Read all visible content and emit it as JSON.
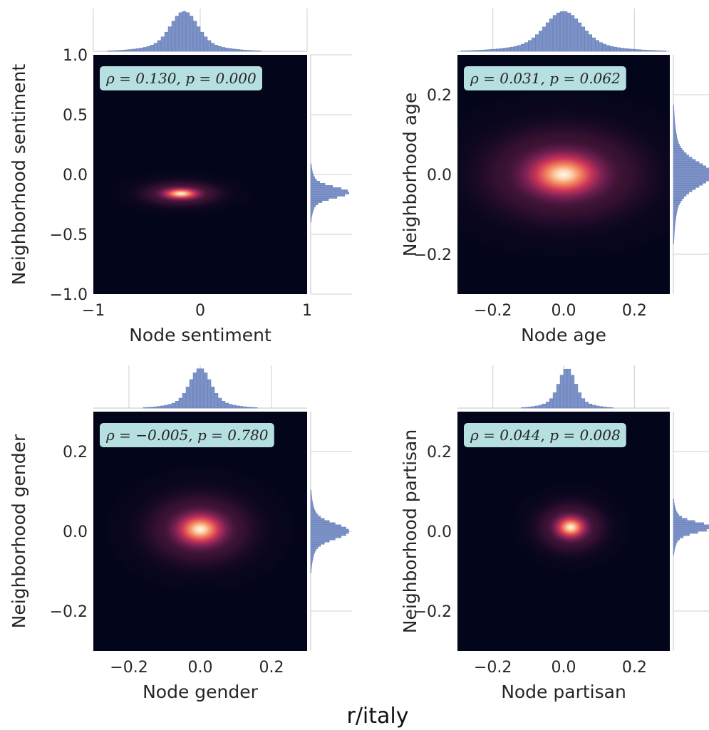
{
  "suptitle": "r/italy",
  "chart_data": [
    {
      "type": "heatmap",
      "xlabel": "Node sentiment",
      "ylabel": "Neighborhood sentiment",
      "xlim": [
        -1,
        1
      ],
      "ylim": [
        -1,
        1
      ],
      "xticks": [
        -1,
        0,
        1
      ],
      "xticklabels": [
        "−1",
        "0",
        "1"
      ],
      "yticks": [
        -1.0,
        -0.5,
        0.0,
        0.5,
        1.0
      ],
      "yticklabels": [
        "−1.0",
        "−0.5",
        "0.0",
        "0.5",
        "1.0"
      ],
      "annotation": "ρ = 0.130, p = 0.000",
      "density_peak": {
        "x": -0.18,
        "y": -0.16
      },
      "marginal_x": {
        "center": -0.15,
        "spread": 0.22
      },
      "marginal_y": {
        "center": -0.15,
        "spread": 0.07
      },
      "grid": true
    },
    {
      "type": "heatmap",
      "xlabel": "Node age",
      "ylabel": "Neighborhood age",
      "xlim": [
        -0.3,
        0.3
      ],
      "ylim": [
        -0.3,
        0.3
      ],
      "xticks": [
        -0.2,
        0.0,
        0.2
      ],
      "xticklabels": [
        "−0.2",
        "0.0",
        "0.2"
      ],
      "yticks": [
        -0.2,
        0.0,
        0.2
      ],
      "yticklabels": [
        "−0.2",
        "0.0",
        "0.2"
      ],
      "annotation": "ρ = 0.031, p = 0.062",
      "density_peak": {
        "x": 0.0,
        "y": 0.0
      },
      "marginal_x": {
        "center": 0.0,
        "spread": 0.09
      },
      "marginal_y": {
        "center": 0.0,
        "spread": 0.05
      },
      "grid": true
    },
    {
      "type": "heatmap",
      "xlabel": "Node gender",
      "ylabel": "Neighborhood gender",
      "xlim": [
        -0.3,
        0.3
      ],
      "ylim": [
        -0.3,
        0.3
      ],
      "xticks": [
        -0.2,
        0.0,
        0.2
      ],
      "xticklabels": [
        "−0.2",
        "0.0",
        "0.2"
      ],
      "yticks": [
        -0.2,
        0.0,
        0.2
      ],
      "yticklabels": [
        "−0.2",
        "0.0",
        "0.2"
      ],
      "annotation": "ρ = −0.005, p = 0.780",
      "density_peak": {
        "x": 0.0,
        "y": 0.005
      },
      "marginal_x": {
        "center": 0.0,
        "spread": 0.05
      },
      "marginal_y": {
        "center": 0.0,
        "spread": 0.03
      },
      "grid": true
    },
    {
      "type": "heatmap",
      "xlabel": "Node partisan",
      "ylabel": "Neighborhood partisan",
      "xlim": [
        -0.3,
        0.3
      ],
      "ylim": [
        -0.3,
        0.3
      ],
      "xticks": [
        -0.2,
        0.0,
        0.2
      ],
      "xticklabels": [
        "−0.2",
        "0.0",
        "0.2"
      ],
      "yticks": [
        -0.2,
        0.0,
        0.2
      ],
      "yticklabels": [
        "−0.2",
        "0.0",
        "0.2"
      ],
      "annotation": "ρ = 0.044, p = 0.008",
      "density_peak": {
        "x": 0.02,
        "y": 0.01
      },
      "marginal_x": {
        "center": 0.01,
        "spread": 0.04
      },
      "marginal_y": {
        "center": 0.01,
        "spread": 0.02
      },
      "grid": true
    }
  ],
  "colors": {
    "background": "#03051a",
    "hist": "#7d93c8",
    "hist_edge": "#5e76b3",
    "annotation_box": "#b5dfe0",
    "grid": "#cfcfcf",
    "text": "#262626"
  }
}
